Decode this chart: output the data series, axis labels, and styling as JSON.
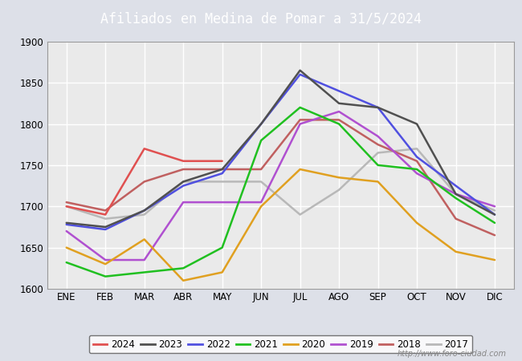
{
  "title": "Afiliados en Medina de Pomar a 31/5/2024",
  "title_bg": "#4a86c8",
  "title_color": "white",
  "ylim": [
    1600,
    1900
  ],
  "yticks": [
    1600,
    1650,
    1700,
    1750,
    1800,
    1850,
    1900
  ],
  "months": [
    "ENE",
    "FEB",
    "MAR",
    "ABR",
    "MAY",
    "JUN",
    "JUL",
    "AGO",
    "SEP",
    "OCT",
    "NOV",
    "DIC"
  ],
  "watermark": "http://www.foro-ciudad.com",
  "series": {
    "2024": {
      "color": "#e05050",
      "data": [
        1700,
        1690,
        1770,
        1755,
        1755,
        null,
        null,
        null,
        null,
        null,
        null,
        null
      ]
    },
    "2023": {
      "color": "#505050",
      "data": [
        1680,
        1675,
        1695,
        1730,
        1745,
        1800,
        1865,
        1825,
        1820,
        1800,
        1715,
        1690
      ]
    },
    "2022": {
      "color": "#5050e0",
      "data": [
        1678,
        1672,
        1695,
        1725,
        1740,
        1800,
        1860,
        1840,
        1820,
        1760,
        1725,
        1690
      ]
    },
    "2021": {
      "color": "#20c020",
      "data": [
        1632,
        1615,
        1620,
        1625,
        1650,
        1780,
        1820,
        1800,
        1750,
        1745,
        1710,
        1680
      ]
    },
    "2020": {
      "color": "#e0a020",
      "data": [
        1650,
        1630,
        1660,
        1610,
        1620,
        1700,
        1745,
        1735,
        1730,
        1680,
        1645,
        1635
      ]
    },
    "2019": {
      "color": "#b050d0",
      "data": [
        1670,
        1635,
        1635,
        1705,
        1705,
        1705,
        1800,
        1815,
        1785,
        1740,
        1715,
        1700
      ]
    },
    "2018": {
      "color": "#c06060",
      "data": [
        1705,
        1695,
        1730,
        1745,
        1745,
        1745,
        1805,
        1805,
        1775,
        1755,
        1685,
        1665
      ]
    },
    "2017": {
      "color": "#b8b8b8",
      "data": [
        1700,
        1685,
        1690,
        1730,
        1730,
        1730,
        1690,
        1720,
        1765,
        1770,
        1715,
        1695
      ]
    }
  },
  "background_color": "#dde0e8",
  "plot_bg": "#eaeaea",
  "grid_color": "white",
  "legend_order": [
    "2024",
    "2023",
    "2022",
    "2021",
    "2020",
    "2019",
    "2018",
    "2017"
  ]
}
